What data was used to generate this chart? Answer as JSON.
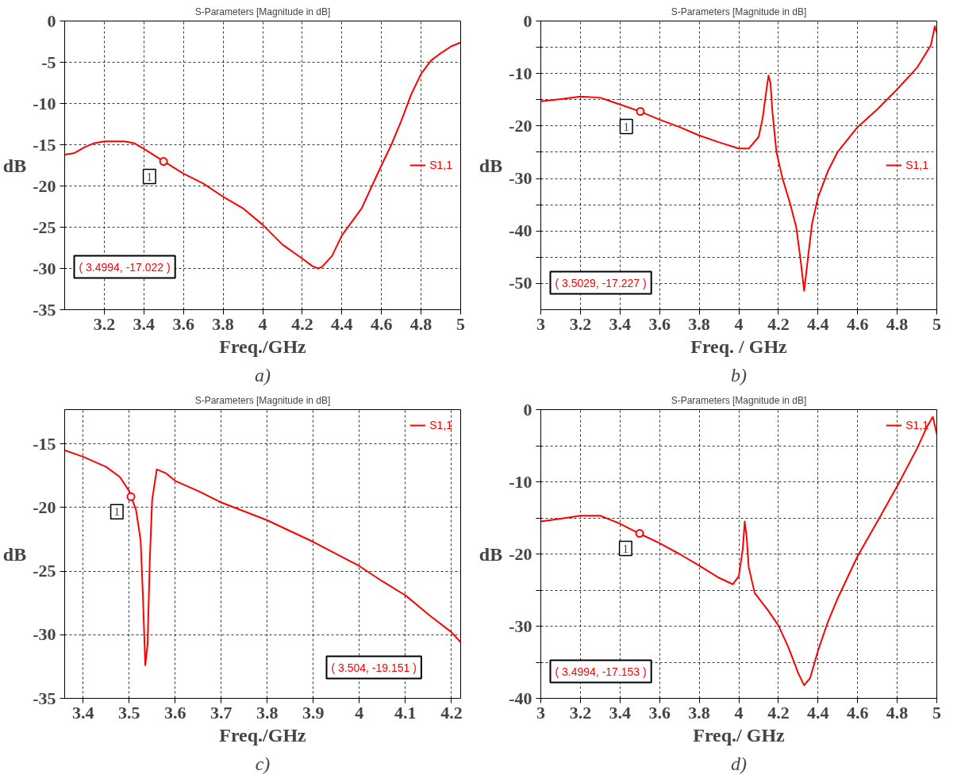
{
  "chart_data": [
    {
      "type": "line",
      "title": "S-Parameters [Magnitude in dB]",
      "xlabel": "Freq./GHz",
      "ylabel": "dB",
      "legend": "right",
      "grid": true,
      "xlim": [
        3.0,
        5.0
      ],
      "xticks": [
        3.2,
        3.4,
        3.6,
        3.8,
        4,
        4.2,
        4.4,
        4.6,
        4.8,
        5
      ],
      "ylim": [
        -35,
        0
      ],
      "yticks": [
        0,
        -5,
        -10,
        -15,
        -20,
        -25,
        -30,
        -35
      ],
      "series": [
        {
          "name": "S1,1",
          "color": "#ff0000",
          "x": [
            3.0,
            3.05,
            3.1,
            3.15,
            3.2,
            3.3,
            3.35,
            3.4,
            3.5,
            3.6,
            3.7,
            3.8,
            3.9,
            4.0,
            4.1,
            4.2,
            4.25,
            4.28,
            4.3,
            4.35,
            4.4,
            4.5,
            4.6,
            4.65,
            4.7,
            4.75,
            4.8,
            4.85,
            4.9,
            4.95,
            5.0
          ],
          "values": [
            -16.2,
            -16.0,
            -15.3,
            -14.8,
            -14.6,
            -14.6,
            -14.8,
            -15.5,
            -17.0,
            -18.5,
            -19.7,
            -21.3,
            -22.7,
            -24.7,
            -27.1,
            -28.8,
            -29.7,
            -30.0,
            -29.8,
            -28.5,
            -26.0,
            -22.7,
            -17.5,
            -15.0,
            -12.1,
            -8.9,
            -6.4,
            -4.8,
            -3.9,
            -3.1,
            -2.6
          ]
        }
      ],
      "annotations": [
        {
          "text": "1",
          "x": 3.4994,
          "y": -17.022
        },
        "( 3.4994, -17.022 )",
        "a)"
      ]
    },
    {
      "type": "line",
      "title": "S-Parameters [Magnitude in dB]",
      "xlabel": "Freq. / GHz",
      "ylabel": "dB",
      "legend": "right",
      "grid": true,
      "xlim": [
        3.0,
        5.0
      ],
      "xticks": [
        3,
        3.2,
        3.4,
        3.6,
        3.8,
        4,
        4.2,
        4.4,
        4.6,
        4.8,
        5
      ],
      "ylim": [
        -55,
        0
      ],
      "yticks": [
        0,
        {
          "value": -5,
          "label": null
        },
        -10,
        {
          "value": -15,
          "label": null
        },
        -20,
        {
          "value": -25,
          "label": null
        },
        -30,
        {
          "value": -35,
          "label": null
        },
        -40,
        {
          "value": -45,
          "label": null
        },
        -50
      ],
      "series": [
        {
          "name": "S1,1",
          "color": "#ff0000",
          "x": [
            3.0,
            3.1,
            3.2,
            3.3,
            3.4,
            3.5,
            3.6,
            3.7,
            3.8,
            3.9,
            4.0,
            4.05,
            4.1,
            4.12,
            4.14,
            4.15,
            4.16,
            4.17,
            4.19,
            4.22,
            4.26,
            4.29,
            4.31,
            4.33,
            4.35,
            4.37,
            4.4,
            4.45,
            4.5,
            4.6,
            4.7,
            4.8,
            4.9,
            4.97,
            4.99,
            5.0
          ],
          "values": [
            -15.3,
            -14.9,
            -14.4,
            -14.6,
            -15.9,
            -17.2,
            -18.8,
            -20.2,
            -21.8,
            -23.1,
            -24.3,
            -24.3,
            -22.1,
            -18.6,
            -13.0,
            -10.4,
            -11.8,
            -17.4,
            -24.9,
            -29.9,
            -34.9,
            -39.3,
            -44.9,
            -51.4,
            -44.9,
            -38.6,
            -33.6,
            -28.6,
            -24.9,
            -20.2,
            -16.8,
            -13.0,
            -8.9,
            -4.6,
            -1.0,
            -2.3
          ]
        }
      ],
      "annotations": [
        {
          "text": "1",
          "x": 3.5029,
          "y": -17.227
        },
        "( 3.5029, -17.227 )",
        "b)"
      ]
    },
    {
      "type": "line",
      "title": "S-Parameters [Magnitude in dB]",
      "xlabel": "Freq./GHz",
      "ylabel": "dB",
      "legend": "top right",
      "grid": true,
      "xlim": [
        3.36,
        4.22
      ],
      "xticks": [
        3.4,
        3.5,
        3.6,
        3.7,
        3.8,
        3.9,
        4,
        4.1,
        4.2
      ],
      "ylim": [
        -35,
        -12.3
      ],
      "yticks": [
        -15,
        -20,
        -25,
        -30,
        -35
      ],
      "series": [
        {
          "name": "S1,1",
          "color": "#ff0000",
          "x": [
            3.36,
            3.4,
            3.45,
            3.48,
            3.5,
            3.504,
            3.515,
            3.525,
            3.53,
            3.535,
            3.54,
            3.545,
            3.55,
            3.56,
            3.58,
            3.6,
            3.65,
            3.7,
            3.8,
            3.9,
            4.0,
            4.05,
            4.1,
            4.15,
            4.2,
            4.22
          ],
          "values": [
            -15.5,
            -16.0,
            -16.8,
            -17.6,
            -18.7,
            -19.1,
            -20.2,
            -22.6,
            -27.0,
            -32.4,
            -30.8,
            -24.0,
            -19.4,
            -17.0,
            -17.3,
            -17.9,
            -18.7,
            -19.6,
            -21.0,
            -22.7,
            -24.6,
            -25.8,
            -26.9,
            -28.4,
            -29.8,
            -30.6
          ]
        }
      ],
      "annotations": [
        {
          "text": "1",
          "x": 3.504,
          "y": -19.151
        },
        "( 3.504, -19.151 )",
        "c)"
      ]
    },
    {
      "type": "line",
      "title": "S-Parameters [Magnitude in dB]",
      "xlabel": "Freq./ GHz",
      "ylabel": "dB",
      "legend": "top right",
      "grid": true,
      "xlim": [
        3.0,
        5.0
      ],
      "xticks": [
        3,
        3.2,
        3.4,
        3.6,
        3.8,
        4,
        4.2,
        4.4,
        4.6,
        4.8,
        5
      ],
      "ylim": [
        -40,
        0
      ],
      "yticks": [
        0,
        {
          "value": -5,
          "label": null
        },
        -10,
        {
          "value": -15,
          "label": null
        },
        -20,
        {
          "value": -25,
          "label": null
        },
        -30,
        {
          "value": -35,
          "label": null
        },
        -40
      ],
      "series": [
        {
          "name": "S1,1",
          "color": "#ff0000",
          "x": [
            3.0,
            3.1,
            3.2,
            3.3,
            3.4,
            3.5,
            3.6,
            3.7,
            3.8,
            3.9,
            3.97,
            4.0,
            4.02,
            4.03,
            4.04,
            4.05,
            4.08,
            4.15,
            4.2,
            4.25,
            4.3,
            4.33,
            4.36,
            4.4,
            4.45,
            4.5,
            4.6,
            4.7,
            4.8,
            4.9,
            4.95,
            4.98,
            5.0
          ],
          "values": [
            -15.5,
            -15.1,
            -14.7,
            -14.7,
            -15.8,
            -17.2,
            -18.5,
            -20.0,
            -21.6,
            -23.3,
            -24.2,
            -23.1,
            -19.3,
            -15.5,
            -17.8,
            -21.8,
            -25.4,
            -27.9,
            -29.9,
            -32.9,
            -36.5,
            -38.2,
            -37.2,
            -33.4,
            -29.4,
            -26.1,
            -20.3,
            -15.5,
            -10.6,
            -5.4,
            -2.4,
            -1.0,
            -3.4
          ]
        }
      ],
      "annotations": [
        {
          "text": "1",
          "x": 3.4994,
          "y": -17.153
        },
        "( 3.4994, -17.153 )",
        "d)"
      ]
    }
  ]
}
